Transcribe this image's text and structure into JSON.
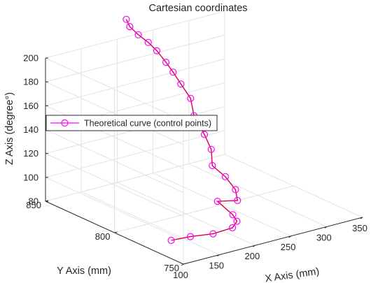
{
  "chart_data": {
    "type": "line3d",
    "title": "Cartesian coordinates",
    "xlabel": "X Axis (mm)",
    "ylabel": "Y Axis (mm)",
    "zlabel": "Z Axis (degree°)",
    "xlim": [
      100,
      350
    ],
    "ylim": [
      750,
      850
    ],
    "zlim": [
      80,
      200
    ],
    "xticks": [
      "100",
      "150",
      "200",
      "250",
      "300",
      "350"
    ],
    "yticks": [
      "750",
      "800",
      "850"
    ],
    "zticks": [
      "80",
      "100",
      "120",
      "140",
      "160",
      "180",
      "200"
    ],
    "grid": true,
    "legend_position": "left",
    "series": [
      {
        "name": "Theoretical curve (control points)",
        "color": "#ff00ff",
        "line_color": "#d6004e",
        "marker": "circle",
        "x": [
          133,
          154,
          176,
          205,
          217,
          219,
          213,
          237,
          240,
          247,
          250,
          262,
          264,
          261,
          264,
          260,
          253,
          245,
          236,
          226,
          216,
          208,
          205
        ],
        "y": [
          776,
          773,
          768,
          769,
          772,
          776,
          784,
          782,
          785,
          796,
          807,
          814,
          820,
          826,
          830,
          835,
          837,
          838,
          840,
          841,
          843,
          845,
          846
        ],
        "z": [
          81,
          82.5,
          84,
          84,
          86,
          89,
          97,
          95,
          102,
          106,
          109,
          117,
          126,
          139,
          151,
          161,
          171,
          180,
          190,
          198,
          205,
          212,
          218
        ]
      }
    ]
  }
}
